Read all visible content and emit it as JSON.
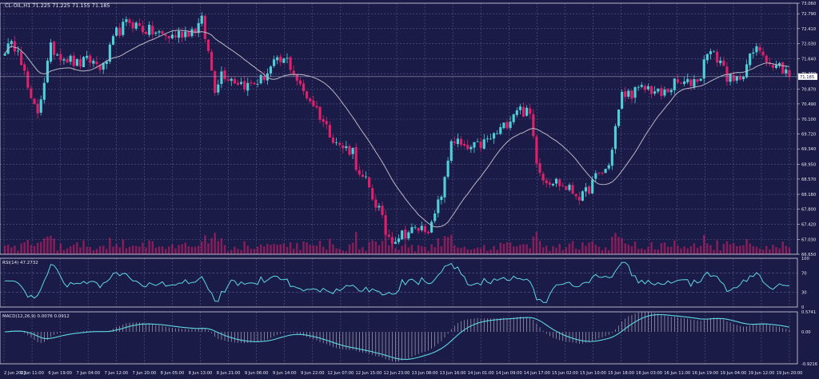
{
  "chart_data": {
    "type": "candlestick",
    "title": "CL-OIL,H1  71.225 71.225 71.155 71.185",
    "colors": {
      "background": "#1b1b47",
      "grid": "#5a5a8c",
      "frame": "#d8d8e8",
      "bull": "#4fd0d8",
      "bear": "#e0206a",
      "ma": "#b8b8c8",
      "indicator": "#5fd6e0",
      "text": "#e6e6f2",
      "current_price_bg": "#ffffff",
      "current_price_text": "#1b1b47"
    },
    "price_axis": {
      "ticks": [
        "73.060",
        "72.790",
        "72.410",
        "72.030",
        "71.640",
        "71.260",
        "70.870",
        "70.490",
        "70.100",
        "69.720",
        "69.340",
        "68.950",
        "68.570",
        "68.180",
        "67.800",
        "67.420",
        "67.030",
        "66.650"
      ],
      "current": "71.185",
      "current_value": 71.185
    },
    "price_range": [
      66.65,
      73.06
    ],
    "time_axis": [
      "2 Jun 2023",
      "6 Jun 11:00",
      "6 Jun 19:00",
      "7 Jun 04:00",
      "7 Jun 12:00",
      "7 Jun 20:00",
      "8 Jun 05:00",
      "8 Jun 13:00",
      "8 Jun 21:00",
      "9 Jun 06:00",
      "9 Jun 14:00",
      "9 Jun 22:00",
      "12 Jun 07:00",
      "12 Jun 15:00",
      "12 Jun 23:00",
      "13 Jun 08:00",
      "13 Jun 16:00",
      "14 Jun 01:00",
      "14 Jun 09:00",
      "14 Jun 17:00",
      "15 Jun 02:00",
      "15 Jun 10:00",
      "15 Jun 18:00",
      "16 Jun 03:00",
      "16 Jun 11:00",
      "16 Jun 19:00",
      "19 Jun 04:00",
      "19 Jun 12:00",
      "19 Jun 20:00"
    ],
    "keypoints": [
      [
        0,
        71.9
      ],
      [
        4,
        72.0
      ],
      [
        8,
        70.5
      ],
      [
        10,
        70.3
      ],
      [
        14,
        71.9
      ],
      [
        18,
        71.7
      ],
      [
        22,
        71.5
      ],
      [
        26,
        71.6
      ],
      [
        30,
        71.4
      ],
      [
        34,
        72.3
      ],
      [
        38,
        72.6
      ],
      [
        42,
        72.4
      ],
      [
        46,
        72.3
      ],
      [
        50,
        72.2
      ],
      [
        54,
        72.3
      ],
      [
        58,
        72.4
      ],
      [
        60,
        72.6
      ],
      [
        62,
        71.8
      ],
      [
        64,
        70.9
      ],
      [
        66,
        71.3
      ],
      [
        70,
        71.1
      ],
      [
        74,
        70.95
      ],
      [
        78,
        71.1
      ],
      [
        82,
        71.5
      ],
      [
        86,
        71.6
      ],
      [
        88,
        71.3
      ],
      [
        90,
        70.9
      ],
      [
        94,
        70.5
      ],
      [
        98,
        69.9
      ],
      [
        102,
        69.4
      ],
      [
        106,
        69.3
      ],
      [
        108,
        68.6
      ],
      [
        110,
        68.5
      ],
      [
        112,
        68.1
      ],
      [
        114,
        67.8
      ],
      [
        116,
        67.2
      ],
      [
        118,
        67.05
      ],
      [
        122,
        67.2
      ],
      [
        126,
        67.3
      ],
      [
        130,
        67.35
      ],
      [
        134,
        68.5
      ],
      [
        136,
        69.6
      ],
      [
        138,
        69.5
      ],
      [
        140,
        69.3
      ],
      [
        144,
        69.4
      ],
      [
        148,
        69.6
      ],
      [
        152,
        69.9
      ],
      [
        156,
        70.4
      ],
      [
        160,
        70.2
      ],
      [
        162,
        69.1
      ],
      [
        164,
        68.6
      ],
      [
        168,
        68.5
      ],
      [
        172,
        68.3
      ],
      [
        176,
        68.1
      ],
      [
        180,
        68.6
      ],
      [
        184,
        68.9
      ],
      [
        186,
        69.9
      ],
      [
        188,
        70.7
      ],
      [
        192,
        70.8
      ],
      [
        196,
        70.9
      ],
      [
        200,
        70.7
      ],
      [
        204,
        71.0
      ],
      [
        208,
        71.0
      ],
      [
        212,
        71.2
      ],
      [
        214,
        71.9
      ],
      [
        216,
        71.7
      ],
      [
        218,
        71.6
      ],
      [
        220,
        71.2
      ],
      [
        222,
        71.0
      ],
      [
        224,
        71.2
      ],
      [
        226,
        71.5
      ],
      [
        228,
        71.8
      ],
      [
        230,
        71.9
      ],
      [
        232,
        71.7
      ],
      [
        234,
        71.4
      ],
      [
        236,
        71.45
      ],
      [
        238,
        71.3
      ],
      [
        239,
        71.185
      ]
    ],
    "candles_count": 240,
    "ma_period": 20,
    "volume_base": 0.03,
    "rsi": {
      "label": "RSI(14) 47.2732",
      "ticks": [
        "100",
        "70",
        "30",
        "0"
      ],
      "range": [
        0,
        100
      ],
      "levels": [
        70,
        30
      ]
    },
    "macd": {
      "label": "MACD(12,26,9) 0.0076 0.0912",
      "ticks": [
        "0.5741",
        "0.00",
        "-0.9216"
      ],
      "range": [
        -0.9216,
        0.5741
      ]
    }
  }
}
